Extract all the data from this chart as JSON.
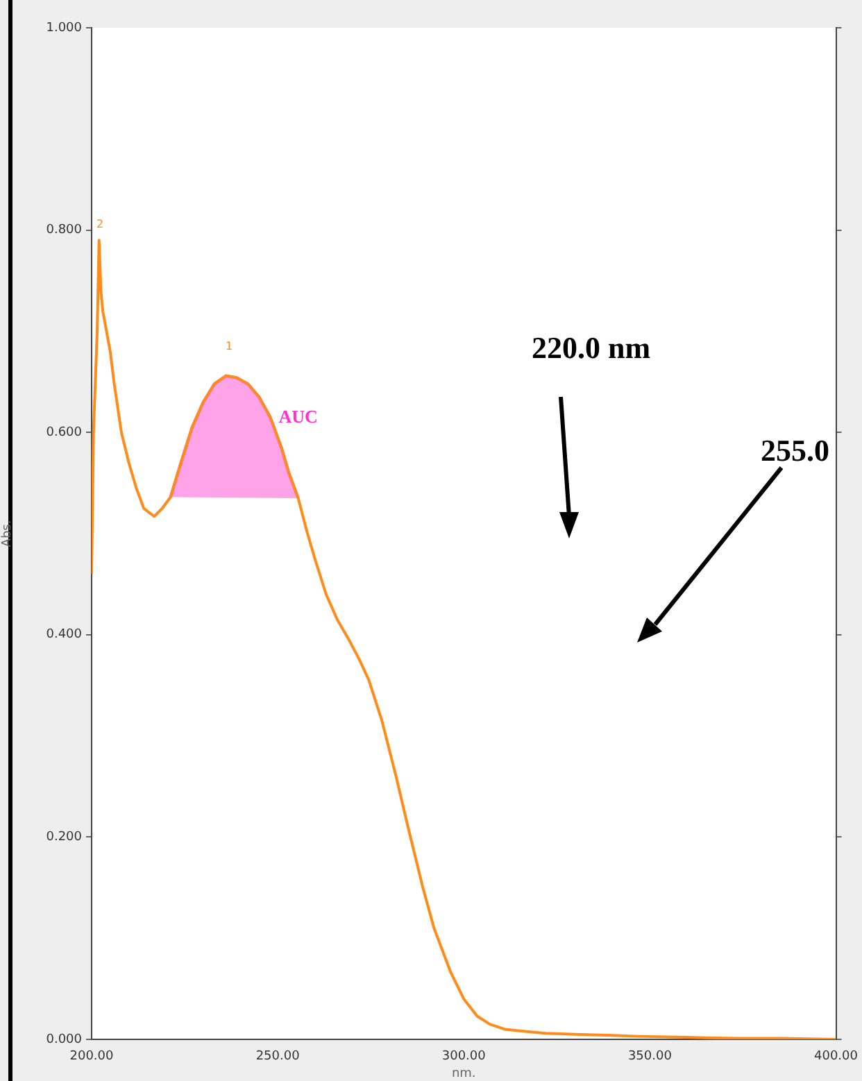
{
  "chart_data": {
    "type": "line",
    "xlabel": "nm.",
    "ylabel": "Abs.",
    "xlim": [
      200,
      400
    ],
    "ylim": [
      0,
      1
    ],
    "xticks": [
      {
        "value": 200,
        "label": "200.00"
      },
      {
        "value": 250,
        "label": "250.00"
      },
      {
        "value": 300,
        "label": "300.00"
      },
      {
        "value": 350,
        "label": "350.00"
      },
      {
        "value": 400,
        "label": "400.00"
      }
    ],
    "yticks": [
      {
        "value": 0,
        "label": "0.000"
      },
      {
        "value": 0.2,
        "label": "0.200"
      },
      {
        "value": 0.4,
        "label": "0.400"
      },
      {
        "value": 0.6,
        "label": "0.600"
      },
      {
        "value": 0.8,
        "label": "0.800"
      },
      {
        "value": 1,
        "label": "1.000"
      }
    ],
    "grid": false,
    "legend": false,
    "marker": "none",
    "line_style": "solid",
    "series": [
      {
        "type": "line",
        "color": "#ff8c1a",
        "x": [
          200,
          200.5,
          201,
          201.5,
          202,
          202.5,
          203,
          204,
          205,
          206,
          208,
          210,
          212,
          214,
          216.8,
          219,
          221.2,
          224,
          227,
          230,
          233,
          236.1,
          239,
          242,
          245,
          248,
          251,
          253,
          255.5,
          258,
          260,
          263,
          266,
          269,
          272,
          274.5,
          278,
          281.8,
          285,
          289,
          292,
          296.4,
          300,
          303.6,
          307,
          311,
          316,
          322,
          330,
          340,
          347,
          360,
          373,
          385,
          400
        ],
        "values": [
          0.46,
          0.6,
          0.65,
          0.7,
          0.79,
          0.74,
          0.72,
          0.7,
          0.68,
          0.65,
          0.6,
          0.57,
          0.545,
          0.525,
          0.517,
          0.525,
          0.536,
          0.57,
          0.605,
          0.63,
          0.648,
          0.656,
          0.654,
          0.648,
          0.635,
          0.615,
          0.585,
          0.56,
          0.535,
          0.5,
          0.475,
          0.44,
          0.415,
          0.396,
          0.375,
          0.355,
          0.315,
          0.26,
          0.21,
          0.15,
          0.11,
          0.067,
          0.04,
          0.023,
          0.015,
          0.01,
          0.008,
          0.006,
          0.005,
          0.004,
          0.003,
          0.002,
          0.001,
          0.001,
          0
        ]
      },
      {
        "type": "area",
        "name": "AUC",
        "color": "#ff33cc",
        "x": [
          221.2,
          224,
          227,
          230,
          233,
          236.1,
          239,
          242,
          245,
          248,
          251,
          253,
          255.5
        ],
        "values": [
          0.536,
          0.57,
          0.605,
          0.63,
          0.648,
          0.656,
          0.654,
          0.648,
          0.635,
          0.615,
          0.585,
          0.56,
          0.535
        ]
      }
    ],
    "annotations": [
      "2",
      "1",
      "220.0 nm",
      "255.0"
    ]
  }
}
